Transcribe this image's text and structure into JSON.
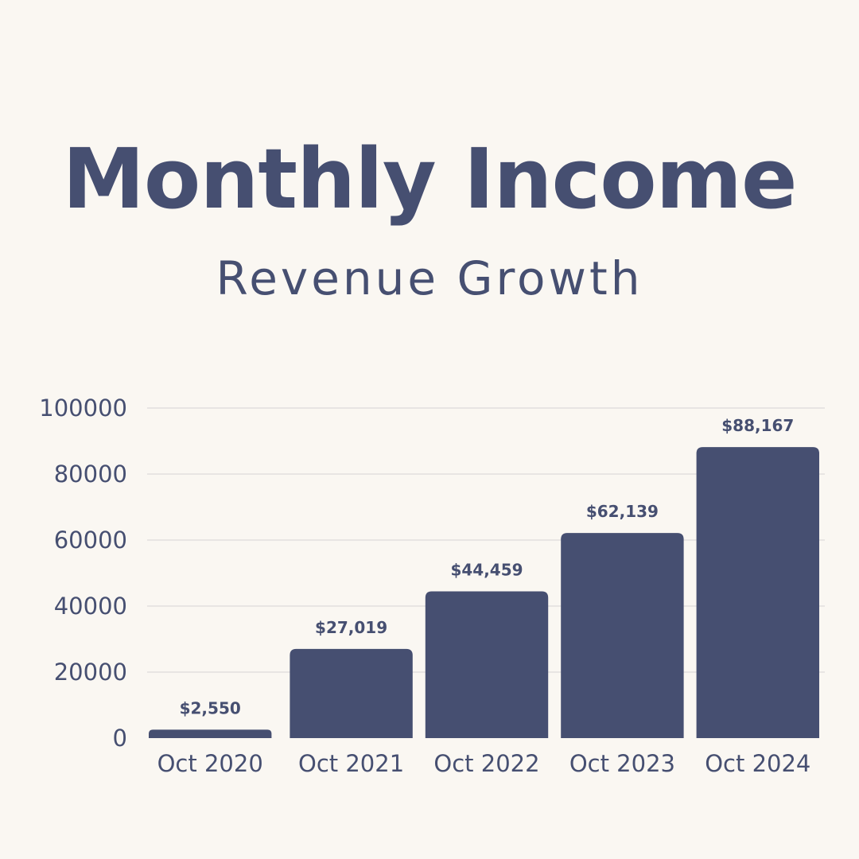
{
  "title": "Monthly Income",
  "subtitle": "Revenue Growth",
  "colors": {
    "background": "#faf7f2",
    "bar": "#464f71",
    "text": "#464f71",
    "grid": "#d7d3d4"
  },
  "chart_data": {
    "type": "bar",
    "title": "Monthly Income",
    "subtitle": "Revenue Growth",
    "categories": [
      "Oct 2020",
      "Oct 2021",
      "Oct 2022",
      "Oct 2023",
      "Oct 2024"
    ],
    "values": [
      2550,
      27019,
      44459,
      62139,
      88167
    ],
    "data_labels": [
      "$2,550",
      "$27,019",
      "$44,459",
      "$62,139",
      "$88,167"
    ],
    "y_ticks": [
      0,
      20000,
      40000,
      60000,
      80000,
      100000
    ],
    "y_tick_labels": [
      "0",
      "20000",
      "40000",
      "60000",
      "80000",
      "100000"
    ],
    "ylim": [
      0,
      100000
    ],
    "grid": true,
    "legend": "none",
    "xlabel": "",
    "ylabel": ""
  }
}
